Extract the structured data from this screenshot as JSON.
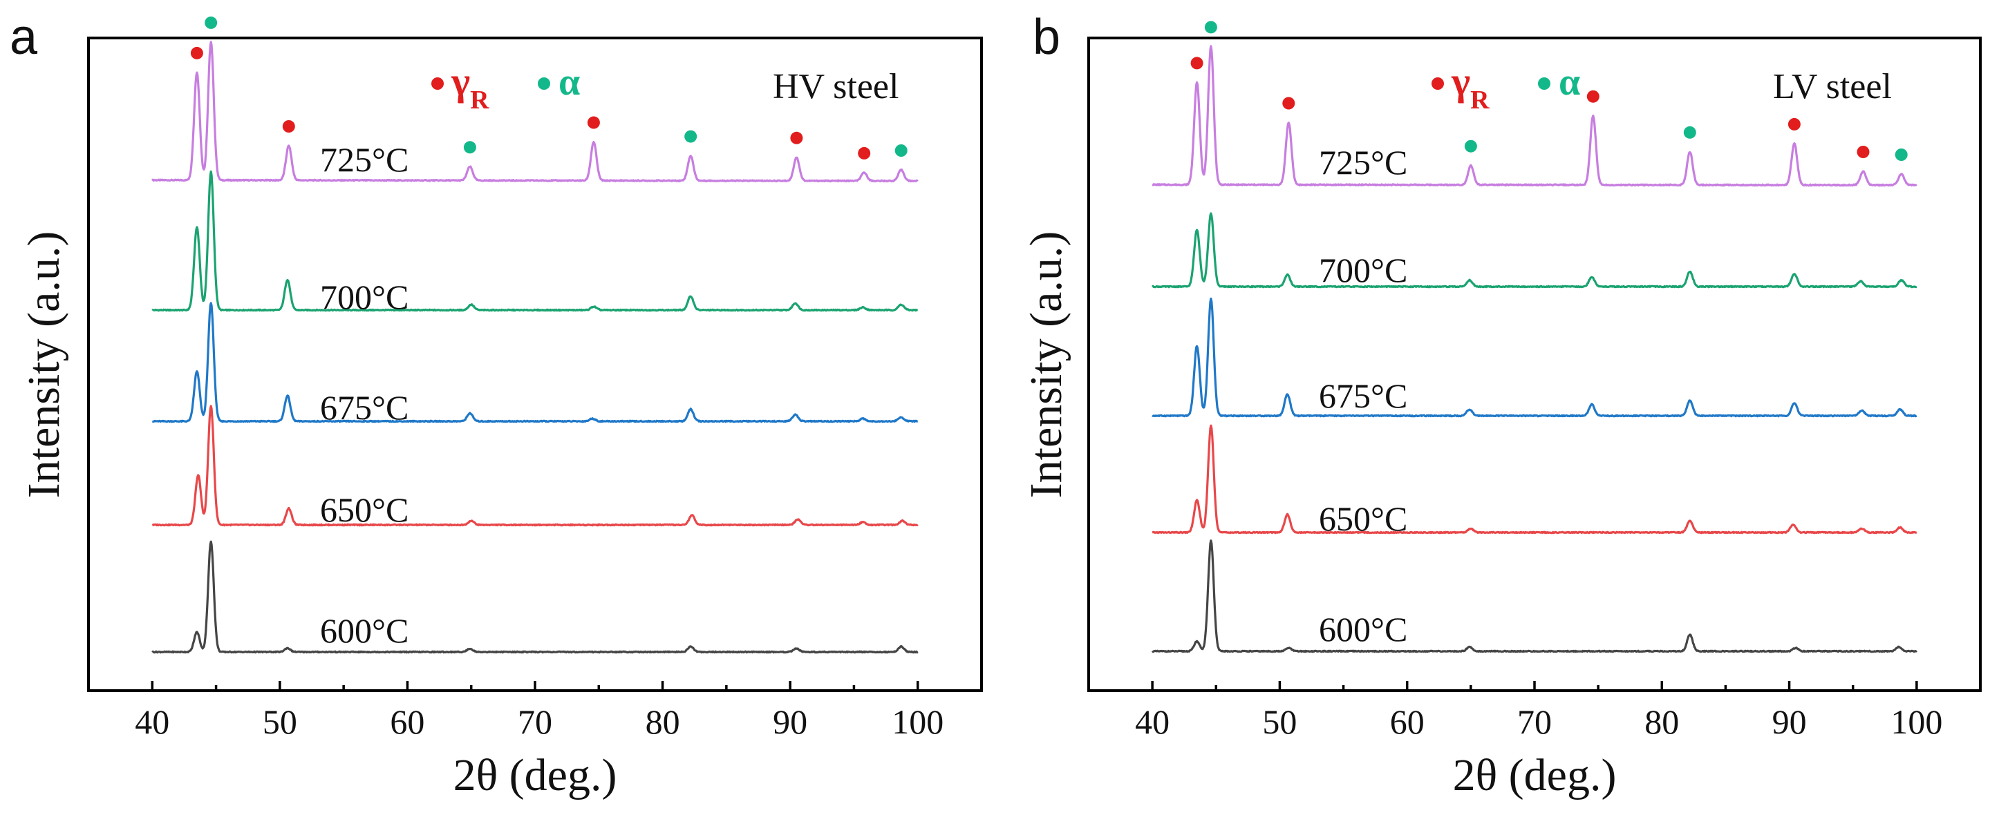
{
  "chart_data": [
    {
      "type": "line",
      "panel_label": "a",
      "title": "HV steel",
      "xlabel": "2θ (deg.)",
      "ylabel": "Intensity (a.u.)",
      "xlim": [
        35,
        105
      ],
      "xticks": [
        40,
        50,
        60,
        70,
        80,
        90,
        100
      ],
      "legend": {
        "gamma_label": "γ",
        "gamma_subscript": "R",
        "alpha_label": "α",
        "placement": "top-center"
      },
      "series": [
        {
          "name": "725°C",
          "label": "725°C",
          "color": "#c77ee0",
          "offset": 4,
          "background_slope": 0.6,
          "peaks": [
            [
              43.5,
              7.8
            ],
            [
              44.6,
              10.0
            ],
            [
              50.7,
              2.5
            ],
            [
              64.9,
              1.0
            ],
            [
              74.6,
              2.8
            ],
            [
              82.2,
              1.8
            ],
            [
              90.5,
              1.7
            ],
            [
              95.8,
              0.6
            ],
            [
              98.7,
              0.8
            ]
          ]
        },
        {
          "name": "700°C",
          "label": "700°C",
          "color": "#1aa371",
          "offset": 3,
          "background_slope": 0,
          "peaks": [
            [
              43.5,
              6.0
            ],
            [
              44.6,
              10.0
            ],
            [
              50.6,
              2.2
            ],
            [
              65.0,
              0.4
            ],
            [
              74.6,
              0.25
            ],
            [
              82.2,
              1.0
            ],
            [
              90.4,
              0.5
            ],
            [
              95.7,
              0.2
            ],
            [
              98.7,
              0.4
            ]
          ]
        },
        {
          "name": "675°C",
          "label": "675°C",
          "color": "#1f78c8",
          "offset": 2,
          "background_slope": 0,
          "peaks": [
            [
              43.5,
              3.7
            ],
            [
              44.6,
              8.8
            ],
            [
              50.6,
              1.9
            ],
            [
              64.9,
              0.6
            ],
            [
              74.5,
              0.2
            ],
            [
              82.2,
              0.9
            ],
            [
              90.4,
              0.5
            ],
            [
              95.7,
              0.2
            ],
            [
              98.7,
              0.3
            ]
          ]
        },
        {
          "name": "650°C",
          "label": "650°C",
          "color": "#e8474a",
          "offset": 1,
          "background_slope": 0,
          "peaks": [
            [
              43.6,
              3.6
            ],
            [
              44.6,
              8.6
            ],
            [
              50.7,
              1.2
            ],
            [
              65.0,
              0.3
            ],
            [
              82.3,
              0.7
            ],
            [
              90.6,
              0.4
            ],
            [
              95.7,
              0.2
            ],
            [
              98.8,
              0.3
            ]
          ]
        },
        {
          "name": "600°C",
          "label": "600°C",
          "color": "#454545",
          "offset": 0,
          "background_slope": 0,
          "peaks": [
            [
              43.5,
              1.8
            ],
            [
              44.6,
              10.0
            ],
            [
              50.6,
              0.35
            ],
            [
              64.9,
              0.3
            ],
            [
              82.2,
              0.5
            ],
            [
              90.5,
              0.3
            ],
            [
              98.7,
              0.5
            ]
          ]
        }
      ],
      "markers": [
        {
          "phase": "gamma",
          "x": 43.5,
          "color": "#e11d1d"
        },
        {
          "phase": "alpha",
          "x": 44.6,
          "color": "#13b88a"
        },
        {
          "phase": "gamma",
          "x": 50.7,
          "color": "#e11d1d"
        },
        {
          "phase": "alpha",
          "x": 64.9,
          "color": "#13b88a"
        },
        {
          "phase": "gamma",
          "x": 74.6,
          "color": "#e11d1d"
        },
        {
          "phase": "alpha",
          "x": 82.2,
          "color": "#13b88a"
        },
        {
          "phase": "gamma",
          "x": 90.5,
          "color": "#e11d1d"
        },
        {
          "phase": "gamma",
          "x": 95.8,
          "color": "#e11d1d"
        },
        {
          "phase": "alpha",
          "x": 98.7,
          "color": "#13b88a"
        }
      ]
    },
    {
      "type": "line",
      "panel_label": "b",
      "title": "LV steel",
      "xlabel": "2θ (deg.)",
      "ylabel": "Intensity (a.u.)",
      "xlim": [
        35,
        105
      ],
      "xticks": [
        40,
        50,
        60,
        70,
        80,
        90,
        100
      ],
      "legend": {
        "gamma_label": "γ",
        "gamma_subscript": "R",
        "alpha_label": "α",
        "placement": "top-center"
      },
      "series": [
        {
          "name": "725°C",
          "label": "725°C",
          "color": "#c77ee0",
          "offset": 4,
          "background_slope": 0.3,
          "peaks": [
            [
              43.5,
              7.4
            ],
            [
              44.6,
              10.0
            ],
            [
              50.7,
              4.5
            ],
            [
              65.0,
              1.4
            ],
            [
              74.6,
              5.0
            ],
            [
              82.2,
              2.4
            ],
            [
              90.4,
              3.0
            ],
            [
              95.8,
              1.0
            ],
            [
              98.8,
              0.8
            ]
          ]
        },
        {
          "name": "700°C",
          "label": "700°C",
          "color": "#1aa371",
          "offset": 3,
          "background_slope": 0,
          "peaks": [
            [
              43.5,
              5.3
            ],
            [
              44.6,
              6.8
            ],
            [
              50.6,
              1.1
            ],
            [
              64.9,
              0.6
            ],
            [
              74.5,
              0.9
            ],
            [
              82.2,
              1.4
            ],
            [
              90.4,
              1.2
            ],
            [
              95.6,
              0.5
            ],
            [
              98.8,
              0.6
            ]
          ]
        },
        {
          "name": "675°C",
          "label": "675°C",
          "color": "#1f78c8",
          "offset": 2,
          "background_slope": 0,
          "peaks": [
            [
              43.5,
              5.5
            ],
            [
              44.6,
              9.2
            ],
            [
              50.6,
              1.7
            ],
            [
              64.9,
              0.5
            ],
            [
              74.5,
              0.9
            ],
            [
              82.2,
              1.2
            ],
            [
              90.4,
              1.0
            ],
            [
              95.7,
              0.4
            ],
            [
              98.7,
              0.5
            ]
          ]
        },
        {
          "name": "650°C",
          "label": "650°C",
          "color": "#e8474a",
          "offset": 1,
          "background_slope": 0,
          "peaks": [
            [
              43.5,
              2.5
            ],
            [
              44.6,
              8.3
            ],
            [
              50.6,
              1.4
            ],
            [
              65.0,
              0.3
            ],
            [
              82.2,
              0.9
            ],
            [
              90.3,
              0.6
            ],
            [
              95.7,
              0.3
            ],
            [
              98.7,
              0.4
            ]
          ]
        },
        {
          "name": "600°C",
          "label": "600°C",
          "color": "#454545",
          "offset": 0,
          "background_slope": 0,
          "peaks": [
            [
              43.5,
              0.9
            ],
            [
              44.6,
              10.0
            ],
            [
              50.7,
              0.3
            ],
            [
              64.9,
              0.4
            ],
            [
              82.2,
              1.5
            ],
            [
              90.5,
              0.3
            ],
            [
              98.6,
              0.4
            ]
          ]
        }
      ],
      "markers": [
        {
          "phase": "gamma",
          "x": 43.5,
          "color": "#e11d1d"
        },
        {
          "phase": "alpha",
          "x": 44.6,
          "color": "#13b88a"
        },
        {
          "phase": "gamma",
          "x": 50.7,
          "color": "#e11d1d"
        },
        {
          "phase": "alpha",
          "x": 65.0,
          "color": "#13b88a"
        },
        {
          "phase": "gamma",
          "x": 74.6,
          "color": "#e11d1d"
        },
        {
          "phase": "alpha",
          "x": 82.2,
          "color": "#13b88a"
        },
        {
          "phase": "gamma",
          "x": 90.4,
          "color": "#e11d1d"
        },
        {
          "phase": "gamma",
          "x": 95.8,
          "color": "#e11d1d"
        },
        {
          "phase": "alpha",
          "x": 98.8,
          "color": "#13b88a"
        }
      ]
    }
  ]
}
